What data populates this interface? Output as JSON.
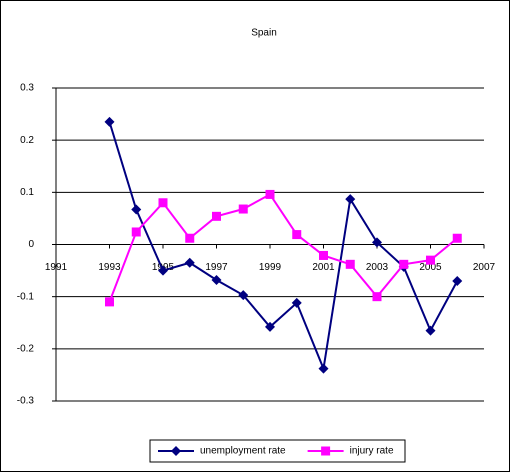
{
  "chart_data": {
    "type": "line",
    "title": "Spain",
    "x": [
      1993,
      1994,
      1995,
      1996,
      1997,
      1998,
      1999,
      2000,
      2001,
      2002,
      2003,
      2004,
      2005,
      2006
    ],
    "series": [
      {
        "name": "unemployment rate",
        "color": "#000080",
        "marker": "diamond",
        "values": [
          0.235,
          0.067,
          -0.05,
          -0.035,
          -0.068,
          -0.097,
          -0.158,
          -0.112,
          -0.238,
          0.087,
          0.004,
          -0.043,
          -0.165,
          -0.07
        ]
      },
      {
        "name": "injury rate",
        "color": "#ff00ff",
        "marker": "square",
        "values": [
          -0.11,
          0.024,
          0.08,
          0.012,
          0.054,
          0.068,
          0.096,
          0.019,
          -0.021,
          -0.038,
          -0.1,
          -0.038,
          -0.03,
          0.012
        ]
      }
    ],
    "xlim": [
      1991,
      2007
    ],
    "xticks": [
      1991,
      1993,
      1995,
      1997,
      1999,
      2001,
      2003,
      2005,
      2007
    ],
    "ylim": [
      -0.3,
      0.3
    ],
    "yticks": [
      -0.3,
      -0.2,
      -0.1,
      0,
      0.1,
      0.2,
      0.3
    ],
    "grid": true,
    "legend": "bottom"
  }
}
